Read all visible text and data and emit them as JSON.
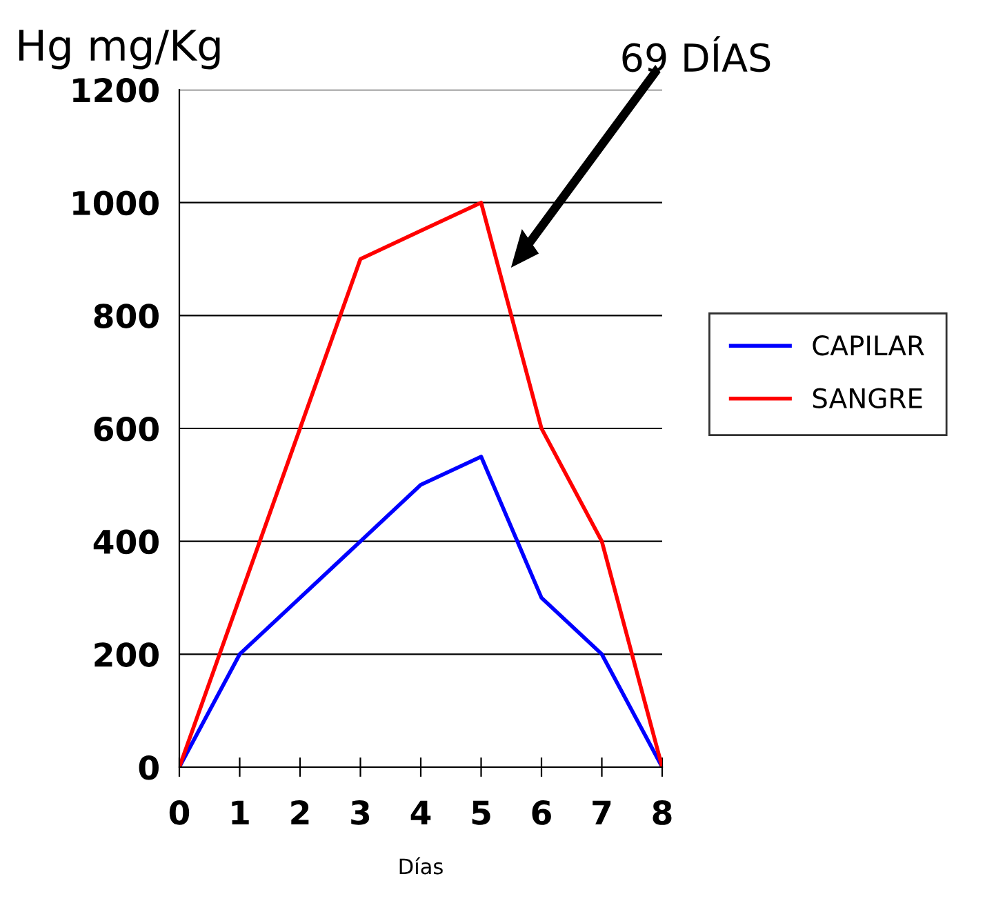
{
  "chart_data": {
    "type": "line",
    "ylabel": "Hg mg/Kg",
    "xlabel": "Días",
    "x": [
      0,
      1,
      2,
      3,
      4,
      5,
      6,
      7,
      8
    ],
    "series": [
      {
        "name": "CAPILAR",
        "color": "#0000ff",
        "values": [
          0,
          200,
          300,
          400,
          500,
          550,
          300,
          200,
          0
        ]
      },
      {
        "name": "SANGRE",
        "color": "#ff0000",
        "values": [
          0,
          300,
          600,
          900,
          950,
          1000,
          600,
          400,
          0
        ]
      }
    ],
    "xlim": [
      0,
      8
    ],
    "xticks": [
      0,
      1,
      2,
      3,
      4,
      5,
      6,
      7,
      8
    ],
    "ylim": [
      0,
      1200
    ],
    "yticks": [
      0,
      200,
      400,
      600,
      800,
      1000,
      1200
    ],
    "grid": "y",
    "legend": "right",
    "marker": "none",
    "line_style": "solid",
    "annotations": [
      "69 DÍAS"
    ]
  }
}
